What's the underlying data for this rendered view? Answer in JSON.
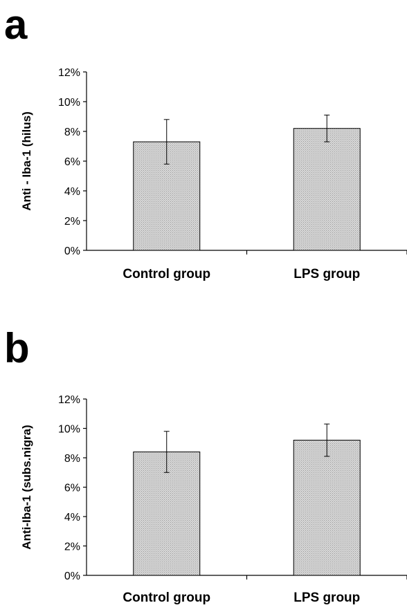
{
  "chart_data": [
    {
      "panel": "a",
      "type": "bar",
      "categories": [
        "Control group",
        "LPS group"
      ],
      "values": [
        7.3,
        8.2
      ],
      "errors": [
        1.5,
        0.9
      ],
      "ylabel": "Anti - Iba-1 (hilus)",
      "ylim": [
        0,
        12
      ],
      "yticks": [
        "0%",
        "2%",
        "4%",
        "6%",
        "8%",
        "10%",
        "12%"
      ],
      "unit": "%",
      "grid": false,
      "legend": "none",
      "bar_fill": "#d9d9d9"
    },
    {
      "panel": "b",
      "type": "bar",
      "categories": [
        "Control group",
        "LPS group"
      ],
      "values": [
        8.4,
        9.2
      ],
      "errors": [
        1.4,
        1.1
      ],
      "ylabel": "Anti-Iba-1 (subs.nigra)",
      "ylim": [
        0,
        12
      ],
      "yticks": [
        "0%",
        "2%",
        "4%",
        "6%",
        "8%",
        "10%",
        "12%"
      ],
      "unit": "%",
      "grid": false,
      "legend": "none",
      "bar_fill": "#d9d9d9"
    }
  ]
}
